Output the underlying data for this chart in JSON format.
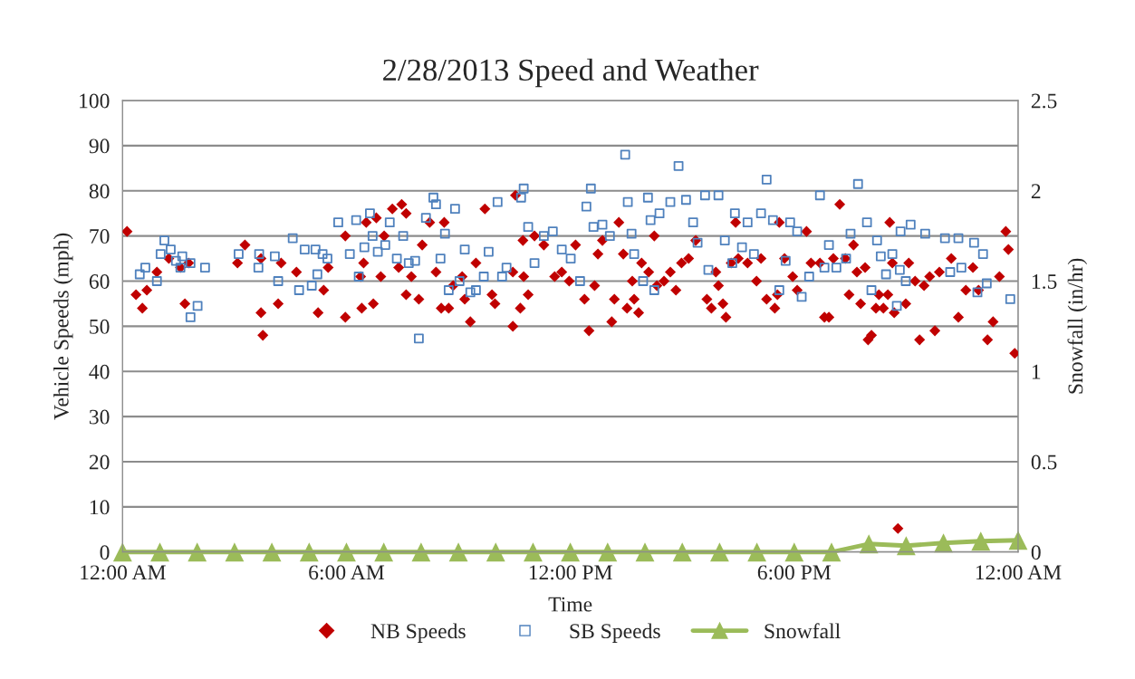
{
  "chart_data": {
    "type": "scatter",
    "title": "2/28/2013 Speed and Weather",
    "xlabel": "Time",
    "ylabel": "Vehicle Speeds (mph)",
    "y2label": "Snowfall (in/hr)",
    "xlim": [
      0,
      24
    ],
    "xticks": [
      {
        "value": 0,
        "label": "12:00 AM"
      },
      {
        "value": 6,
        "label": "6:00 AM"
      },
      {
        "value": 12,
        "label": "12:00 PM"
      },
      {
        "value": 18,
        "label": "6:00 PM"
      },
      {
        "value": 24,
        "label": "12:00 AM"
      }
    ],
    "ylim": [
      0,
      100
    ],
    "yticks": [
      0,
      10,
      20,
      30,
      40,
      50,
      60,
      70,
      80,
      90,
      100
    ],
    "y2lim": [
      0,
      2.5
    ],
    "y2ticks": [
      0,
      0.5,
      1,
      1.5,
      2,
      2.5
    ],
    "grid": "y",
    "legend": "bottom",
    "series": [
      {
        "name": "NB Speeds",
        "marker": "diamond",
        "color": "#c00000",
        "x": [
          0.12,
          0.36,
          0.53,
          0.65,
          0.92,
          1.24,
          1.55,
          1.67,
          1.77,
          3.08,
          3.28,
          3.71,
          3.76,
          3.71,
          4.17,
          4.25,
          4.66,
          5.24,
          5.39,
          5.51,
          5.97,
          5.97,
          6.38,
          6.41,
          6.46,
          6.53,
          6.72,
          6.8,
          6.92,
          7.01,
          7.23,
          7.48,
          7.6,
          7.4,
          7.6,
          7.74,
          7.94,
          8.03,
          8.23,
          8.4,
          8.54,
          8.62,
          8.74,
          8.86,
          9.1,
          9.17,
          9.32,
          9.47,
          9.71,
          9.9,
          9.98,
          10.46,
          10.46,
          10.53,
          10.73,
          10.66,
          10.75,
          10.87,
          11.04,
          11.29,
          11.58,
          11.77,
          11.97,
          12.14,
          12.38,
          12.5,
          12.65,
          12.74,
          12.86,
          13.11,
          13.18,
          13.3,
          13.42,
          13.52,
          13.66,
          13.71,
          13.83,
          13.91,
          14.1,
          14.25,
          14.32,
          14.51,
          14.68,
          14.83,
          14.98,
          15.17,
          15.36,
          15.66,
          15.78,
          15.9,
          15.97,
          16.09,
          16.17,
          16.31,
          16.43,
          16.5,
          16.75,
          16.99,
          17.11,
          17.26,
          17.48,
          17.55,
          17.6,
          17.74,
          17.96,
          18.08,
          18.33,
          18.45,
          18.69,
          18.81,
          18.93,
          19.05,
          19.22,
          19.37,
          19.47,
          19.59,
          19.68,
          19.78,
          19.9,
          19.98,
          20.07,
          20.19,
          20.27,
          20.39,
          20.51,
          20.56,
          20.63,
          20.68,
          20.78,
          20.99,
          21.07,
          21.24,
          21.36,
          21.48,
          21.63,
          21.77,
          21.89,
          22.21,
          22.4,
          22.6,
          22.79,
          22.94,
          23.18,
          23.33,
          23.5,
          23.67,
          23.74,
          23.91
        ],
        "values": [
          71,
          57,
          54,
          58,
          62,
          65,
          63,
          55,
          64,
          64,
          68,
          53,
          48,
          65,
          55,
          64,
          62,
          53,
          58,
          63,
          70,
          52,
          61,
          54,
          64,
          73,
          55,
          74,
          61,
          70,
          76,
          77,
          75,
          63,
          57,
          61,
          56,
          68,
          73,
          62,
          54,
          73,
          54,
          59,
          61,
          56,
          51,
          64,
          76,
          57,
          55,
          50,
          62,
          79,
          69,
          54,
          61,
          57,
          70,
          68,
          61,
          62,
          60,
          68,
          56,
          49,
          59,
          66,
          69,
          51,
          56,
          73,
          66,
          54,
          60,
          56,
          53,
          64,
          62,
          70,
          59,
          60,
          62,
          58,
          64,
          65,
          69,
          56,
          54,
          62,
          59,
          55,
          52,
          64,
          73,
          65,
          64,
          60,
          65,
          56,
          54,
          57,
          73,
          65,
          61,
          58,
          71,
          64,
          64,
          52,
          52,
          65,
          77,
          65,
          57,
          68,
          62,
          55,
          63,
          47,
          48,
          54,
          57,
          54,
          57,
          73,
          64,
          53,
          5.2,
          55,
          64,
          60,
          47,
          59,
          61,
          49,
          62,
          65,
          52,
          58,
          63,
          58,
          47,
          51,
          61,
          71,
          67,
          44
        ]
      },
      {
        "name": "SB Speeds",
        "marker": "square",
        "color": "#4f81bd",
        "x": [
          0.46,
          0.61,
          0.92,
          1.02,
          1.12,
          1.29,
          1.43,
          1.55,
          1.6,
          1.82,
          1.82,
          2.01,
          2.21,
          3.11,
          3.64,
          3.66,
          4.08,
          4.17,
          4.56,
          4.73,
          4.88,
          5.07,
          5.17,
          5.22,
          5.36,
          5.49,
          5.78,
          6.09,
          6.26,
          6.33,
          6.48,
          6.63,
          6.7,
          6.84,
          7.04,
          7.16,
          7.35,
          7.52,
          7.67,
          7.84,
          7.94,
          8.13,
          8.33,
          8.4,
          8.52,
          8.64,
          8.74,
          8.91,
          9.03,
          9.17,
          9.32,
          9.47,
          9.68,
          9.81,
          10.05,
          10.17,
          10.29,
          10.68,
          10.75,
          10.87,
          11.04,
          11.29,
          11.53,
          11.77,
          12.01,
          12.26,
          12.43,
          12.55,
          12.62,
          12.86,
          13.06,
          13.47,
          13.54,
          13.64,
          13.71,
          13.95,
          14.08,
          14.15,
          14.25,
          14.39,
          14.68,
          14.9,
          15.1,
          15.29,
          15.41,
          15.61,
          15.7,
          15.97,
          16.14,
          16.34,
          16.41,
          16.6,
          16.75,
          16.92,
          17.11,
          17.26,
          17.43,
          17.6,
          17.77,
          17.89,
          18.08,
          18.2,
          18.4,
          18.69,
          18.81,
          18.93,
          19.13,
          19.39,
          19.51,
          19.71,
          19.95,
          20.07,
          20.22,
          20.32,
          20.46,
          20.63,
          20.75,
          20.83,
          20.85,
          20.99,
          21.12,
          21.51,
          22.04,
          22.18,
          22.4,
          22.48,
          22.82,
          22.91,
          23.06,
          23.16,
          23.79
        ],
        "values": [
          61.5,
          63,
          60,
          66,
          69,
          67,
          64.5,
          63,
          65.5,
          64,
          52,
          54.5,
          63,
          66,
          63,
          66,
          65.5,
          60,
          69.5,
          58,
          67,
          59,
          67,
          61.5,
          66,
          65,
          73,
          66,
          73.5,
          61,
          67.5,
          75,
          70,
          66.5,
          68,
          73,
          65,
          70,
          64,
          64.5,
          47.3,
          74,
          78.5,
          77,
          65,
          70.5,
          58,
          76,
          60,
          67,
          57.5,
          58,
          61,
          66.5,
          77.5,
          61,
          63,
          78.5,
          80.5,
          72,
          64,
          70,
          71,
          67,
          65,
          60,
          76.5,
          80.5,
          72,
          72.5,
          70,
          88,
          77.5,
          70.5,
          66,
          60,
          78.5,
          73.5,
          58,
          75,
          77.5,
          85.5,
          78,
          73,
          68.5,
          79,
          62.5,
          79,
          69,
          64,
          75,
          67.5,
          73,
          66,
          75,
          82.5,
          73.5,
          58,
          64.5,
          73,
          71,
          56.5,
          61,
          79,
          63,
          68,
          63,
          65,
          70.5,
          81.5,
          73,
          58,
          69,
          65.5,
          61.5,
          66,
          54.5,
          62.5,
          71,
          60,
          72.5,
          70.5,
          69.5,
          62,
          69.5,
          63,
          68.5,
          57.5,
          66,
          59.5,
          56
        ]
      },
      {
        "name": "Snowfall",
        "type": "line",
        "axis": "y2",
        "marker": "triangle",
        "line_style": "solid",
        "color": "#9bbb59",
        "x": [
          0,
          1,
          2,
          3,
          4,
          5,
          6,
          7,
          8,
          9,
          10,
          11,
          12,
          13,
          14,
          15,
          16,
          17,
          18,
          19,
          20,
          21,
          22,
          23,
          24
        ],
        "values": [
          0,
          0,
          0,
          0,
          0,
          0,
          0,
          0,
          0,
          0,
          0,
          0,
          0,
          0,
          0,
          0,
          0,
          0,
          0,
          0,
          0.045,
          0.035,
          0.05,
          0.06,
          0.065
        ]
      }
    ]
  }
}
